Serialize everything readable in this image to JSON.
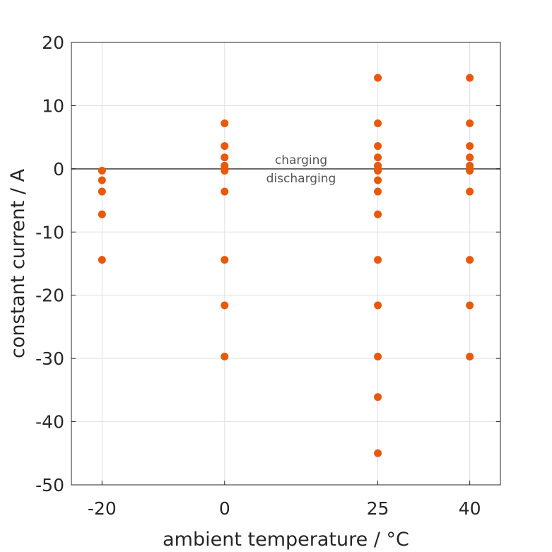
{
  "chart_data": {
    "type": "scatter",
    "xlabel": "ambient temperature / °C",
    "ylabel": "constant current / A",
    "x_ticks": [
      -20,
      0,
      25,
      40
    ],
    "y_ticks": [
      20,
      10,
      0,
      -10,
      -20,
      -30,
      -40,
      -50
    ],
    "xlim": [
      -25,
      45
    ],
    "ylim": [
      -50,
      20
    ],
    "grid": true,
    "marker_color": "#e8590c",
    "reference_line": {
      "y": 0,
      "color": "#666666"
    },
    "annotations": {
      "above": "charging",
      "below": "discharging"
    },
    "points": [
      {
        "x": -20,
        "y": -0.3
      },
      {
        "x": -20,
        "y": -1.8
      },
      {
        "x": -20,
        "y": -3.6
      },
      {
        "x": -20,
        "y": -7.2
      },
      {
        "x": -20,
        "y": -14.4
      },
      {
        "x": 0,
        "y": 7.2
      },
      {
        "x": 0,
        "y": 3.6
      },
      {
        "x": 0,
        "y": 1.8
      },
      {
        "x": 0,
        "y": 0.5
      },
      {
        "x": 0,
        "y": 0
      },
      {
        "x": 0,
        "y": -0.3
      },
      {
        "x": 0,
        "y": -3.6
      },
      {
        "x": 0,
        "y": -14.4
      },
      {
        "x": 0,
        "y": -21.6
      },
      {
        "x": 0,
        "y": -29.7
      },
      {
        "x": 25,
        "y": 14.4
      },
      {
        "x": 25,
        "y": 7.2
      },
      {
        "x": 25,
        "y": 3.6
      },
      {
        "x": 25,
        "y": 1.8
      },
      {
        "x": 25,
        "y": 0.5
      },
      {
        "x": 25,
        "y": 0
      },
      {
        "x": 25,
        "y": -0.3
      },
      {
        "x": 25,
        "y": -1.8
      },
      {
        "x": 25,
        "y": -3.6
      },
      {
        "x": 25,
        "y": -7.2
      },
      {
        "x": 25,
        "y": -14.4
      },
      {
        "x": 25,
        "y": -21.6
      },
      {
        "x": 25,
        "y": -29.7
      },
      {
        "x": 25,
        "y": -36.1
      },
      {
        "x": 25,
        "y": -45
      },
      {
        "x": 40,
        "y": 14.4
      },
      {
        "x": 40,
        "y": 7.2
      },
      {
        "x": 40,
        "y": 3.6
      },
      {
        "x": 40,
        "y": 1.8
      },
      {
        "x": 40,
        "y": 0.5
      },
      {
        "x": 40,
        "y": 0
      },
      {
        "x": 40,
        "y": -0.3
      },
      {
        "x": 40,
        "y": -3.6
      },
      {
        "x": 40,
        "y": -14.4
      },
      {
        "x": 40,
        "y": -21.6
      },
      {
        "x": 40,
        "y": -29.7
      }
    ]
  }
}
